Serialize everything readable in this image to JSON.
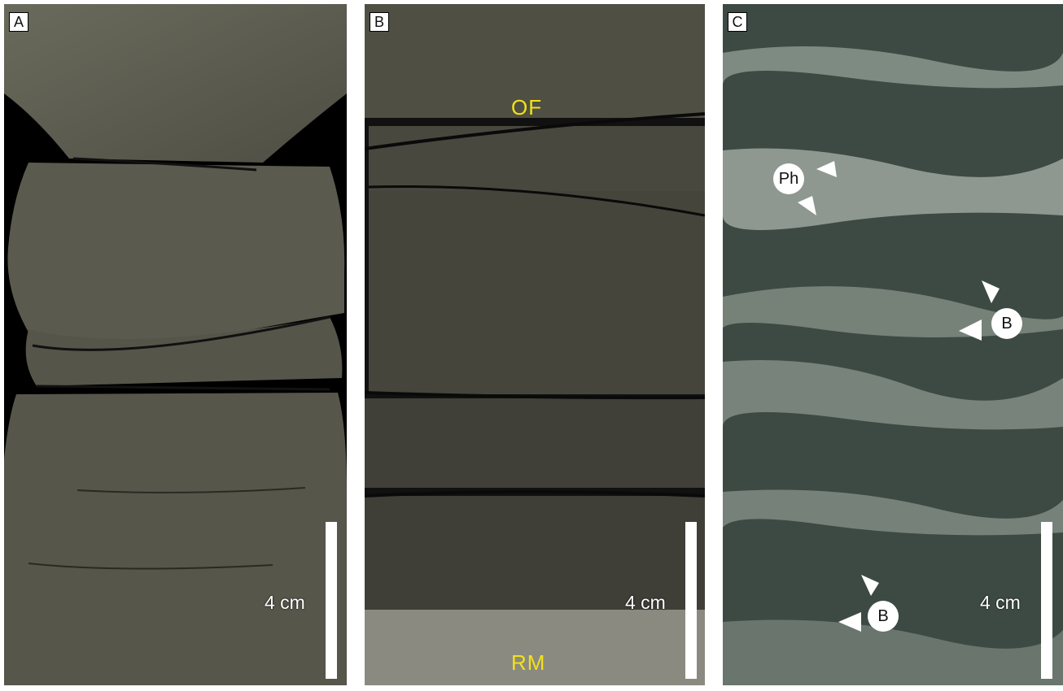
{
  "panels": [
    {
      "letter": "A",
      "scale_label": "4 cm"
    },
    {
      "letter": "B",
      "scale_label": "4 cm",
      "labels": {
        "top": "OF",
        "bottom": "RM"
      }
    },
    {
      "letter": "C",
      "scale_label": "4 cm",
      "markers": [
        "Ph",
        "B",
        "B"
      ]
    }
  ],
  "colors": {
    "label_yellow": "#f2e21a",
    "scale_bar": "#ffffff",
    "core_grey": "#5a5a4e",
    "core_dark": "#3d3d35",
    "mottled_green": "#3d4a44"
  }
}
